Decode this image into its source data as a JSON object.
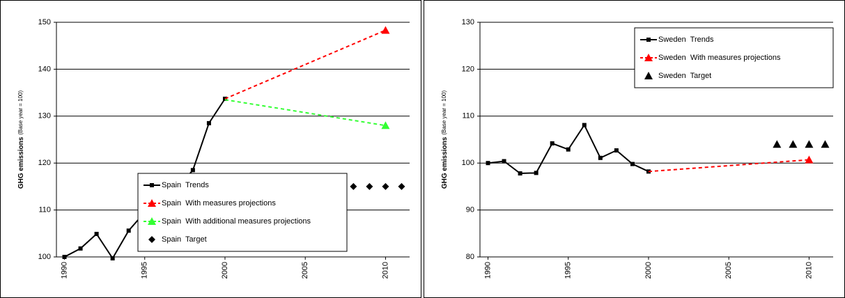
{
  "chart_data": [
    {
      "type": "line",
      "ylabel": "GHG emissions",
      "ylabel_note": "(Base year = 100)",
      "xlim": [
        1989.5,
        2011.5
      ],
      "xticks": [
        1990,
        1995,
        2000,
        2005,
        2010
      ],
      "ylim": [
        100,
        150
      ],
      "yticks": [
        100,
        110,
        120,
        130,
        140,
        150
      ],
      "grid": true,
      "legend": "lower center",
      "series": [
        {
          "name": "Spain  Trends",
          "color": "#000000",
          "line": "solid",
          "marker": "square",
          "marker_on": "all",
          "x": [
            1990,
            1991,
            1992,
            1993,
            1994,
            1995,
            1996,
            1997,
            1998,
            1999,
            2000
          ],
          "values": [
            100,
            101.8,
            104.9,
            99.7,
            105.6,
            109.5,
            112.5,
            114.5,
            118.5,
            128.5,
            133.7
          ]
        },
        {
          "name": "Spain  With measures projections",
          "color": "#ff0000",
          "line": "dashed",
          "marker": "triangle",
          "marker_on": "last",
          "x": [
            2000,
            2010
          ],
          "values": [
            133.7,
            148.3
          ]
        },
        {
          "name": "Spain  With additional measures projections",
          "color": "#33ff33",
          "line": "dashed",
          "marker": "triangle",
          "marker_on": "last",
          "x": [
            2000,
            2010
          ],
          "values": [
            133.5,
            128
          ]
        },
        {
          "name": "Spain  Target",
          "color": "#000000",
          "line": "none",
          "marker": "diamond",
          "marker_on": "all",
          "x": [
            2008,
            2009,
            2010,
            2011
          ],
          "values": [
            115,
            115,
            115,
            115
          ]
        }
      ]
    },
    {
      "type": "line",
      "ylabel": "GHG emissions",
      "ylabel_note": "(Base year = 100)",
      "xlim": [
        1989.5,
        2011.5
      ],
      "xticks": [
        1990,
        1995,
        2000,
        2005,
        2010
      ],
      "ylim": [
        80,
        130
      ],
      "yticks": [
        80,
        90,
        100,
        110,
        120,
        130
      ],
      "grid": true,
      "legend": "upper right",
      "series": [
        {
          "name": "Sweden  Trends",
          "color": "#000000",
          "line": "solid",
          "marker": "square",
          "marker_on": "all",
          "x": [
            1990,
            1991,
            1992,
            1993,
            1994,
            1995,
            1996,
            1997,
            1998,
            1999,
            2000
          ],
          "values": [
            100,
            100.4,
            97.8,
            97.9,
            104.2,
            102.9,
            108.1,
            101.1,
            102.7,
            99.8,
            98.2
          ]
        },
        {
          "name": "Sweden  With measures projections",
          "color": "#ff0000",
          "line": "dashed",
          "marker": "triangle",
          "marker_on": "last",
          "x": [
            2000,
            2010
          ],
          "values": [
            98.2,
            100.7
          ]
        },
        {
          "name": "Sweden  Target",
          "color": "#000000",
          "line": "none",
          "marker": "triangle",
          "marker_on": "all",
          "x": [
            2008,
            2009,
            2010,
            2011
          ],
          "values": [
            104,
            104,
            104,
            104
          ]
        }
      ]
    }
  ]
}
